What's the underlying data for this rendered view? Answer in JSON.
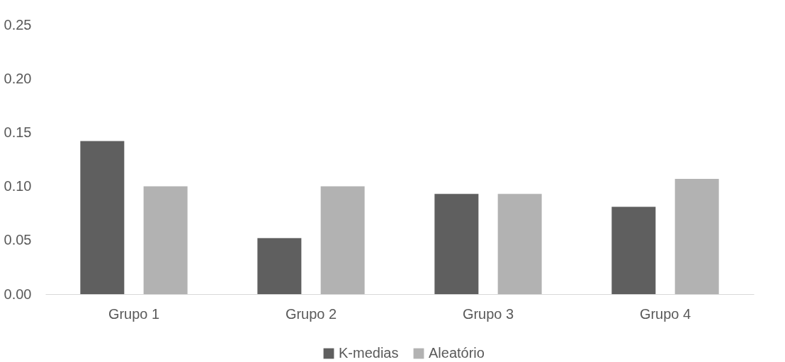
{
  "chart_data": {
    "type": "bar",
    "categories": [
      "Grupo 1",
      "Grupo 2",
      "Grupo 3",
      "Grupo 4"
    ],
    "series": [
      {
        "name": "K-medias",
        "color": "#5f5f5f",
        "values": [
          0.142,
          0.052,
          0.093,
          0.081
        ]
      },
      {
        "name": "Aleatório",
        "color": "#b2b2b2",
        "values": [
          0.1,
          0.1,
          0.093,
          0.107
        ]
      }
    ],
    "ylim": [
      0,
      0.25
    ],
    "yticks": [
      {
        "value": 0,
        "label": "0.00"
      },
      {
        "value": 0.05,
        "label": "0.05"
      },
      {
        "value": 0.1,
        "label": "0.10"
      },
      {
        "value": 0.15,
        "label": "0.15"
      },
      {
        "value": 0.2,
        "label": "0.20"
      },
      {
        "value": 0.25,
        "label": "0.25"
      }
    ],
    "grid": false,
    "legend": "bottom"
  }
}
